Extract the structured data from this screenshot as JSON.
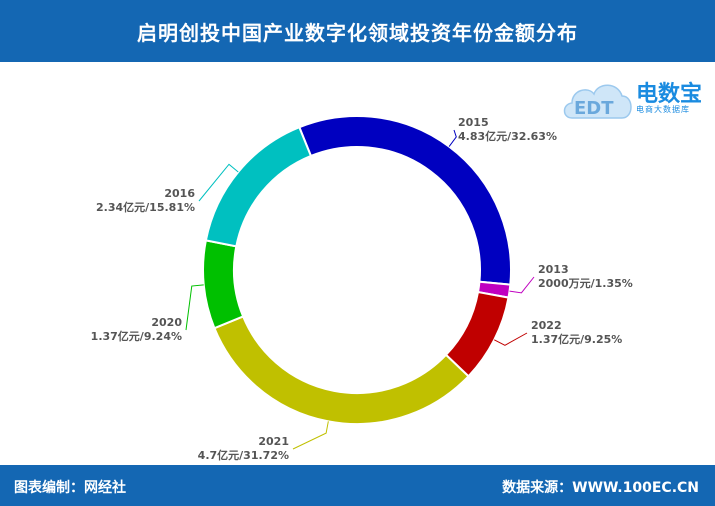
{
  "header": {
    "title": "启明创投中国产业数字化领域投资年份金额分布"
  },
  "footer": {
    "left": "图表编制：网经社",
    "right": "数据来源：WWW.100EC.CN"
  },
  "logo": {
    "text": "电数宝",
    "sub": "电商大数据库",
    "mark": "EDT"
  },
  "chart_data": {
    "type": "pie",
    "variant": "donut",
    "slices": [
      {
        "label": "2015",
        "value_text": "4.83亿元/32.63%",
        "percent": 32.63,
        "color": "#0000c0"
      },
      {
        "label": "2013",
        "value_text": "2000万元/1.35%",
        "percent": 1.35,
        "color": "#c000c0"
      },
      {
        "label": "2022",
        "value_text": "1.37亿元/9.25%",
        "percent": 9.25,
        "color": "#c00000"
      },
      {
        "label": "2021",
        "value_text": "4.7亿元/31.72%",
        "percent": 31.72,
        "color": "#c0c000"
      },
      {
        "label": "2020",
        "value_text": "1.37亿元/9.24%",
        "percent": 9.24,
        "color": "#00c000"
      },
      {
        "label": "2016",
        "value_text": "2.34亿元/15.81%",
        "percent": 15.81,
        "color": "#00c0c0"
      }
    ]
  }
}
